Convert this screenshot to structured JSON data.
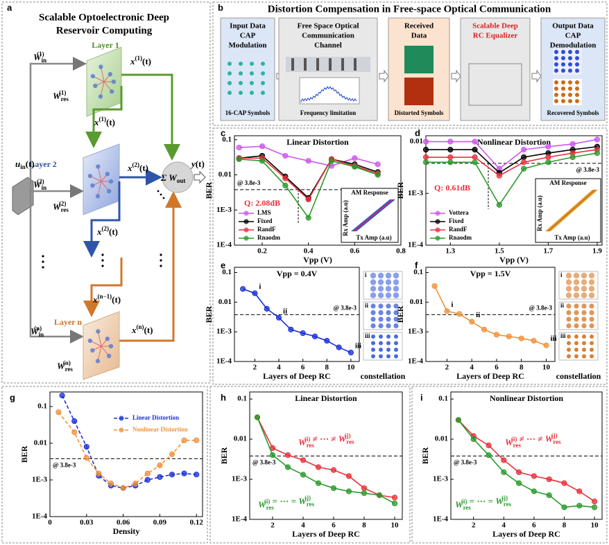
{
  "panel_a": {
    "panel": "a",
    "title": [
      "Scalable Optoelectronic Deep",
      "Reservoir Computing"
    ],
    "layers": [
      "Layer 1",
      "Layer 2",
      "Layer n"
    ],
    "labels": [
      {
        "base": "u",
        "sub": "in",
        "arg": "(t)"
      },
      {
        "base": "W",
        "sub": "in",
        "sup": "(1)"
      },
      {
        "base": "x",
        "sup": "(1)",
        "arg": "(t)"
      },
      {
        "base": "W",
        "sub": "res",
        "sup": "(1)"
      },
      {
        "base": "x",
        "sup": "(1)",
        "arg": "(t)"
      },
      {
        "base": "W",
        "sub": "in",
        "sup": "(2)"
      },
      {
        "base": "x",
        "sup": "(2)",
        "arg": "(t)"
      },
      {
        "base": "W",
        "sub": "res",
        "sup": "(2)"
      },
      {
        "base": "x",
        "sup": "(2)",
        "arg": "(t)"
      },
      {
        "base": "x",
        "sup": "(n−1)",
        "arg": "(t)"
      },
      {
        "base": "W",
        "sub": "in",
        "sup": "(n)"
      },
      {
        "base": "x",
        "sup": "(n)",
        "arg": "(t)"
      },
      {
        "base": "W",
        "sub": "res",
        "sup": "(n)"
      },
      {
        "base": "Σ W",
        "sub": "out"
      },
      {
        "base": "y",
        "arg": "(t)"
      }
    ]
  },
  "panel_b": {
    "panel": "b",
    "title": "Distortion Compensation in Free-space Optical Communication",
    "boxes": [
      {
        "title": [
          "Input Data",
          "CAP",
          "Modulation"
        ],
        "caption": "16-CAP Symbols"
      },
      {
        "title": [
          "Free Space Optical",
          "Communication",
          "Channel"
        ],
        "caption": "Frequency limitation"
      },
      {
        "title": [
          "Received",
          "Data"
        ],
        "caption": "Distorted Symbols"
      },
      {
        "title": [
          "Scalable Deep",
          "RC Equalizer"
        ]
      },
      {
        "title": [
          "Output Data",
          "CAP",
          "Demodulation"
        ],
        "caption": "Recovered Symbols"
      }
    ]
  },
  "chart_data": [
    {
      "panel": "c",
      "type": "line",
      "title": "Linear Distortion",
      "xlabel": "Vpp (V)",
      "ylabel": "BER",
      "log_y": true,
      "xlim": [
        0.08,
        0.8
      ],
      "xticks": [
        0.2,
        0.4,
        0.6,
        0.8
      ],
      "ylim": [
        0.0001,
        0.13
      ],
      "yticks": [
        {
          "value": 0.0001,
          "label": "1E-4"
        },
        {
          "value": 0.001,
          "label": "1E-3"
        },
        0.01,
        0.1
      ],
      "threshold": {
        "value": 0.0038,
        "label": "@ 3.8e-3"
      },
      "annotation": "Q: 2.08dB",
      "inset": {
        "title": "AM Response",
        "xlabel": "Tx Amp (a.u)",
        "ylabel": "Rx Amp (a.u)"
      },
      "legend": "lower left",
      "x": [
        0.1,
        0.2,
        0.3,
        0.4,
        0.5,
        0.6,
        0.7
      ],
      "series": [
        {
          "name": "LMS",
          "color": "#cc55ee",
          "values": [
            0.06,
            0.065,
            0.035,
            0.025,
            0.018,
            0.03,
            0.02
          ]
        },
        {
          "name": "Fixed",
          "color": "#000000",
          "values": [
            0.03,
            0.035,
            0.009,
            0.0022,
            0.028,
            0.02,
            0.012
          ]
        },
        {
          "name": "RandF",
          "color": "#e8303a",
          "values": [
            0.03,
            0.03,
            0.008,
            0.002,
            0.028,
            0.018,
            0.011
          ]
        },
        {
          "name": "Rnaodm",
          "color": "#2a9a2a",
          "values": [
            0.028,
            0.025,
            0.005,
            0.0006,
            0.025,
            0.017,
            0.01
          ]
        }
      ]
    },
    {
      "panel": "d",
      "type": "line",
      "title": "Nonlinear Distortion",
      "xlabel": "Vpp (V)",
      "ylabel": "BER",
      "log_y": true,
      "xlim": [
        1.2,
        1.92
      ],
      "xticks": [
        1.3,
        1.5,
        1.7,
        1.9
      ],
      "ylim": [
        0.0001,
        0.013
      ],
      "yticks": [
        {
          "value": 0.0001,
          "label": "1E-4"
        },
        {
          "value": 0.001,
          "label": "1E-3"
        },
        0.01
      ],
      "threshold": {
        "value": 0.0038,
        "label": "@ 3.8e-3"
      },
      "annotation": "Q: 0.61dB",
      "inset": {
        "title": "AM Response",
        "xlabel": "Tx Amp (a.u)",
        "ylabel": "Rx Amp (a.u)"
      },
      "legend": "lower left",
      "x": [
        1.2,
        1.3,
        1.4,
        1.5,
        1.6,
        1.7,
        1.8,
        1.9
      ],
      "series": [
        {
          "name": "Vottera",
          "color": "#cc55ee",
          "values": [
            0.01,
            0.01,
            0.01,
            0.003,
            0.007,
            0.008,
            0.009,
            0.011
          ]
        },
        {
          "name": "Fixed",
          "color": "#000000",
          "values": [
            0.007,
            0.007,
            0.007,
            0.0025,
            0.005,
            0.006,
            0.007,
            0.008
          ]
        },
        {
          "name": "RandF",
          "color": "#e8303a",
          "values": [
            0.005,
            0.005,
            0.005,
            0.0022,
            0.004,
            0.005,
            0.006,
            0.007
          ]
        },
        {
          "name": "Rnaodm",
          "color": "#2a9a2a",
          "values": [
            0.004,
            0.004,
            0.004,
            0.0006,
            0.003,
            0.004,
            0.005,
            0.006
          ]
        }
      ]
    },
    {
      "panel": "e",
      "type": "line",
      "title": "Vpp = 0.4V",
      "xlabel": "Layers of Deep RC",
      "ylabel": "BER",
      "log_y": true,
      "xlim": [
        0.3,
        10.7
      ],
      "xticks": [
        2,
        4,
        6,
        8,
        10
      ],
      "ylim": [
        0.0001,
        0.15
      ],
      "yticks": [
        {
          "value": 0.0001,
          "label": "1E-4"
        },
        {
          "value": 0.001,
          "label": "1E-3"
        },
        0.01,
        0.1
      ],
      "threshold": {
        "value": 0.0038,
        "label": "@ 3.8e-3"
      },
      "constellation": {
        "label": "constellation",
        "tags": [
          "i",
          "ii",
          "iii"
        ]
      },
      "x": [
        1,
        2,
        3,
        4,
        5,
        6,
        7,
        8,
        9,
        10
      ],
      "series": [
        {
          "color": "#1a2fd6",
          "values": [
            0.028,
            0.02,
            0.006,
            0.003,
            0.0012,
            0.0009,
            0.0007,
            0.0005,
            0.0003,
            0.0002
          ],
          "point_labels": [
            null,
            "i",
            null,
            "ii",
            null,
            null,
            null,
            null,
            null,
            "iii"
          ]
        }
      ]
    },
    {
      "panel": "f",
      "type": "line",
      "title": "Vpp = 1.5V",
      "xlabel": "Layers of Deep RC",
      "ylabel": "BER",
      "log_y": true,
      "xlim": [
        0.3,
        10.7
      ],
      "xticks": [
        2,
        4,
        6,
        8,
        10
      ],
      "ylim": [
        0.0001,
        0.15
      ],
      "yticks": [
        {
          "value": 0.0001,
          "label": "1E-4"
        },
        {
          "value": 0.001,
          "label": "1E-3"
        },
        0.01,
        0.1
      ],
      "threshold": {
        "value": 0.0038,
        "label": "@ 3.8e-3"
      },
      "constellation": {
        "label": "constellation",
        "tags": [
          "i",
          "ii",
          "iii"
        ]
      },
      "x": [
        1,
        2,
        3,
        4,
        5,
        6,
        7,
        8,
        9,
        10
      ],
      "series": [
        {
          "color": "#f0913a",
          "values": [
            0.035,
            0.005,
            0.004,
            0.0022,
            0.0012,
            0.0008,
            0.0007,
            0.0006,
            0.0005,
            0.00035
          ],
          "point_labels": [
            null,
            "i",
            null,
            "ii",
            null,
            null,
            null,
            null,
            null,
            "iii"
          ]
        }
      ]
    },
    {
      "panel": "g",
      "type": "line",
      "xlabel": "Density",
      "ylabel": "BER",
      "log_y": true,
      "dashed": true,
      "xlim": [
        0,
        0.125
      ],
      "xticks": [
        0,
        0.03,
        0.06,
        0.09,
        0.12
      ],
      "ylim": [
        0.0001,
        0.25
      ],
      "yticks": [
        {
          "value": 0.0001,
          "label": "1E-4"
        },
        {
          "value": 0.001,
          "label": "1E-3"
        },
        0.01,
        0.1
      ],
      "threshold": {
        "value": 0.0038,
        "label": "@ 3.8e-3"
      },
      "legend": "upper right",
      "series": [
        {
          "name": "Linear Distortion",
          "color": "#1a2fd6",
          "x": [
            0.01,
            0.02,
            0.03,
            0.04,
            0.05,
            0.06,
            0.07,
            0.08,
            0.09,
            0.1,
            0.11,
            0.12
          ],
          "values": [
            0.2,
            0.04,
            0.008,
            0.0013,
            0.0007,
            0.0006,
            0.0007,
            0.001,
            0.0012,
            0.0014,
            0.0015,
            0.0014
          ]
        },
        {
          "name": "Nonlinear Distortion",
          "color": "#f0913a",
          "x": [
            0.007,
            0.02,
            0.03,
            0.04,
            0.05,
            0.06,
            0.07,
            0.08,
            0.09,
            0.1,
            0.11,
            0.12
          ],
          "values": [
            0.07,
            0.02,
            0.004,
            0.0015,
            0.0008,
            0.0006,
            0.0008,
            0.0015,
            0.0025,
            0.005,
            0.012,
            0.012
          ]
        }
      ]
    },
    {
      "panel": "h",
      "type": "line",
      "title": "Linear Distortion",
      "xlabel": "Layers of Deep RC",
      "ylabel": "BER",
      "log_y": true,
      "xlim": [
        0.5,
        10.5
      ],
      "xticks": [
        2,
        4,
        6,
        8,
        10
      ],
      "ylim": [
        0.0001,
        0.15
      ],
      "yticks": [
        {
          "value": 0.0001,
          "label": "1E-4"
        },
        {
          "value": 0.001,
          "label": "1E-3"
        },
        0.01,
        0.1
      ],
      "threshold": {
        "value": 0.0038,
        "label": "@ 3.8e-3"
      },
      "x": [
        1,
        2,
        3,
        4,
        5,
        6,
        7,
        8,
        9,
        10
      ],
      "series": [
        {
          "color": "#e8303a",
          "values": [
            0.035,
            0.006,
            0.004,
            0.003,
            0.002,
            0.0017,
            0.0012,
            0.0006,
            0.0004,
            0.00035
          ],
          "label": [
            {
              "base": "W",
              "sub": "res",
              "sup": "(i)"
            },
            " ≠ ··· ≠ ",
            {
              "base": "W",
              "sub": "res",
              "sup": "(j)"
            }
          ]
        },
        {
          "color": "#2a9a2a",
          "values": [
            0.035,
            0.004,
            0.002,
            0.0013,
            0.0008,
            0.0006,
            0.0005,
            0.00045,
            0.0004,
            0.00025
          ],
          "label": [
            {
              "base": "W",
              "sub": "res",
              "sup": "(i)"
            },
            " = ··· = ",
            {
              "base": "W",
              "sub": "res",
              "sup": "(j)"
            }
          ]
        }
      ]
    },
    {
      "panel": "i",
      "type": "line",
      "title": "Nonlinear Distortion",
      "xlabel": "Layers of Deep RC",
      "ylabel": "BER",
      "log_y": true,
      "xlim": [
        0.5,
        10.5
      ],
      "xticks": [
        2,
        4,
        6,
        8,
        10
      ],
      "ylim": [
        0.0001,
        0.15
      ],
      "yticks": [
        {
          "value": 0.0001,
          "label": "1E-4"
        },
        {
          "value": 0.001,
          "label": "1E-3"
        },
        0.01,
        0.1
      ],
      "threshold": {
        "value": 0.0038,
        "label": "@ 3.8e-3"
      },
      "x": [
        1,
        2,
        3,
        4,
        5,
        6,
        7,
        8,
        9,
        10
      ],
      "series": [
        {
          "color": "#e8303a",
          "values": [
            0.03,
            0.012,
            0.007,
            0.003,
            0.0015,
            0.0012,
            0.001,
            0.0008,
            0.0005,
            0.00028
          ],
          "label": [
            {
              "base": "W",
              "sub": "res",
              "sup": "(i)"
            },
            " ≠ ··· ≠ ",
            {
              "base": "W",
              "sub": "res",
              "sup": "(j)"
            }
          ]
        },
        {
          "color": "#2a9a2a",
          "values": [
            0.03,
            0.01,
            0.004,
            0.0015,
            0.0008,
            0.0005,
            0.0004,
            0.0002,
            0.00022,
            0.0002
          ],
          "label": [
            {
              "base": "W",
              "sub": "res",
              "sup": "(i)"
            },
            " = ··· = ",
            {
              "base": "W",
              "sub": "res",
              "sup": "(j)"
            }
          ]
        }
      ]
    }
  ]
}
